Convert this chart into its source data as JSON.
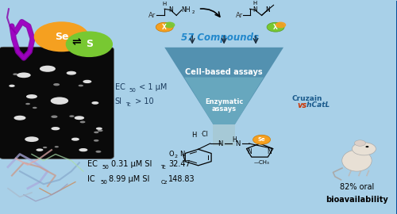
{
  "bg_color": "#a8d0e8",
  "bg_gradient_top": "#c5e3f0",
  "se_circle_color": "#F5A020",
  "s_circle_color": "#78C832",
  "se_label": "Se",
  "s_label": "S",
  "equilibrium": "⇌",
  "compounds_text": "57 Compounds",
  "cell_assay_text": "Cell-based assays",
  "enzyme_assay_text": "Enzymatic\nassays",
  "cruzain_text": "Cruzain",
  "vs_text": "vs",
  "hcatl_text": "hCatL",
  "ec50_1": "EC",
  "ec50_1_sub": "50",
  "ec50_1_val": " < 1 μM",
  "si_tc_label": "SI",
  "si_tc_sub": "Tc",
  "si_tc_val": " > 10",
  "funnel_color_outer": "#4a8aaa",
  "funnel_color_inner": "#6aaac0",
  "funnel_color_stem": "#aaccd8",
  "bioavail_pct": "82% oral",
  "bioavail_text": "bioavailability",
  "ec50_2_val": "0.31 μM SI",
  "si_tc2_sub": "Tc",
  "si_tc2_val": " 32.47",
  "ic50_val": "8.99 μM SI",
  "si_cz_sub": "Cz",
  "si_cz_val": " 148.83"
}
